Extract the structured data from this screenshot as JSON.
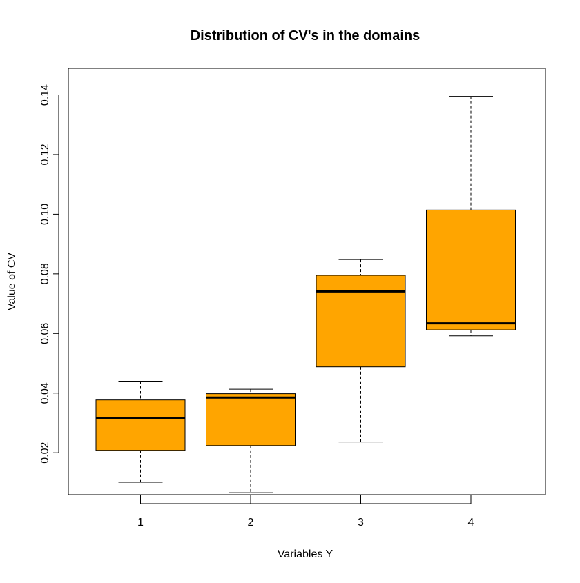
{
  "chart_data": {
    "type": "boxplot",
    "title": "Distribution of CV's in the domains",
    "xlabel": "Variables Y",
    "ylabel": "Value of CV",
    "categories": [
      "1",
      "2",
      "3",
      "4"
    ],
    "ylim": [
      0.005,
      0.144
    ],
    "yticks": [
      {
        "value": 0.02,
        "label": "0.02"
      },
      {
        "value": 0.04,
        "label": "0.04"
      },
      {
        "value": 0.06,
        "label": "0.06"
      },
      {
        "value": 0.08,
        "label": "0.08"
      },
      {
        "value": 0.1,
        "label": "0.10"
      },
      {
        "value": 0.12,
        "label": "0.12"
      },
      {
        "value": 0.14,
        "label": "0.14"
      }
    ],
    "boxes": [
      {
        "category": "1",
        "min": 0.0101,
        "q1": 0.0208,
        "median": 0.0317,
        "q3": 0.0377,
        "max": 0.044
      },
      {
        "category": "2",
        "min": 0.0066,
        "q1": 0.0224,
        "median": 0.0385,
        "q3": 0.0398,
        "max": 0.0413
      },
      {
        "category": "3",
        "min": 0.0236,
        "q1": 0.0488,
        "median": 0.0741,
        "q3": 0.0795,
        "max": 0.0848
      },
      {
        "category": "4",
        "min": 0.0592,
        "q1": 0.0612,
        "median": 0.0634,
        "q3": 0.1014,
        "max": 0.1395
      }
    ],
    "fill_color": "#FFA500",
    "grid": false,
    "legend": "none"
  }
}
